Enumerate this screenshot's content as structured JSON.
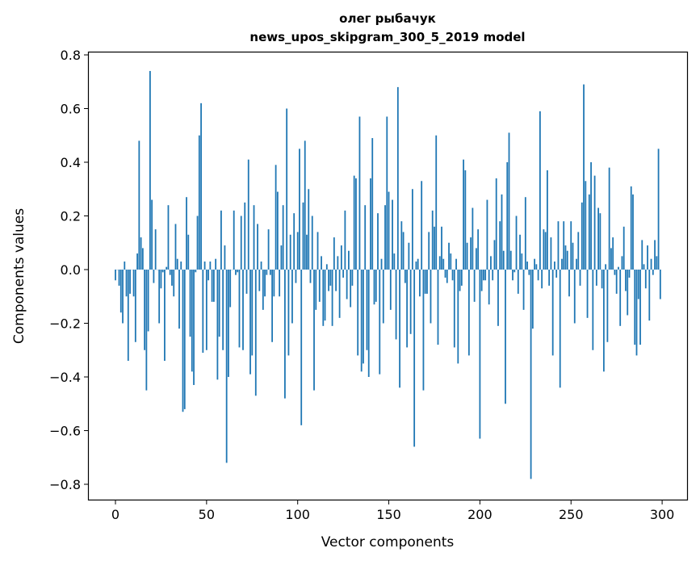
{
  "chart_data": {
    "type": "bar",
    "title": [
      "олег рыбачук",
      "news_upos_skipgram_300_5_2019 model"
    ],
    "xlabel": "Vector components",
    "ylabel": "Components values",
    "xlim": [
      -15,
      314
    ],
    "ylim": [
      -0.86,
      0.81
    ],
    "xticks": [
      0,
      50,
      100,
      150,
      200,
      250,
      300
    ],
    "xtick_labels": [
      "0",
      "50",
      "100",
      "150",
      "200",
      "250",
      "300"
    ],
    "yticks": [
      -0.8,
      -0.6,
      -0.4,
      -0.2,
      0.0,
      0.2,
      0.4,
      0.6,
      0.8
    ],
    "ytick_labels": [
      "−0.8",
      "−0.6",
      "−0.4",
      "−0.2",
      "0.0",
      "0.2",
      "0.4",
      "0.6",
      "0.8"
    ],
    "grid": false,
    "color": "#1f77b4",
    "values": [
      -0.04,
      0,
      -0.06,
      -0.16,
      -0.2,
      0.03,
      -0.1,
      -0.34,
      -0.09,
      0,
      -0.1,
      -0.27,
      0.06,
      0.48,
      0.12,
      0.08,
      -0.3,
      -0.45,
      -0.23,
      0.74,
      0.26,
      -0.05,
      0.15,
      0,
      -0.2,
      -0.07,
      -0.01,
      -0.34,
      0.01,
      0.24,
      -0.02,
      -0.06,
      -0.1,
      0.17,
      0.04,
      -0.22,
      0.03,
      -0.53,
      -0.52,
      0.27,
      0.13,
      -0.25,
      -0.38,
      -0.43,
      -0.01,
      0.2,
      0.5,
      0.62,
      -0.31,
      0.03,
      -0.3,
      -0.04,
      0.03,
      -0.12,
      -0.12,
      0.04,
      -0.41,
      -0.25,
      0.22,
      -0.3,
      0.09,
      -0.72,
      -0.4,
      -0.14,
      0,
      0.22,
      -0.02,
      -0.01,
      -0.29,
      0.2,
      -0.3,
      0.25,
      -0.09,
      0.41,
      -0.39,
      -0.32,
      0.24,
      -0.47,
      0.17,
      -0.08,
      0.03,
      -0.15,
      -0.1,
      -0.02,
      0.15,
      -0.02,
      -0.27,
      -0.1,
      0.39,
      0.29,
      -0.1,
      0.09,
      0.24,
      -0.48,
      0.6,
      -0.32,
      0.13,
      -0.2,
      0.21,
      -0.05,
      0.14,
      0.45,
      -0.58,
      0.25,
      0.48,
      0.13,
      0.3,
      -0.05,
      0.2,
      -0.45,
      -0.15,
      0.14,
      -0.12,
      0.05,
      -0.21,
      -0.19,
      0.02,
      -0.08,
      -0.06,
      -0.21,
      0.12,
      -0.08,
      0.05,
      -0.18,
      0.09,
      -0.03,
      0.22,
      -0.11,
      0.07,
      -0.14,
      -0.06,
      0.35,
      0.34,
      -0.32,
      0.57,
      -0.38,
      -0.35,
      0.24,
      -0.3,
      -0.4,
      0.34,
      0.49,
      -0.13,
      -0.12,
      0.21,
      -0.39,
      0.04,
      -0.2,
      0.24,
      0.57,
      0.29,
      -0.15,
      0.26,
      0.06,
      -0.26,
      0.68,
      -0.44,
      0.18,
      0.14,
      -0.05,
      -0.29,
      0.1,
      -0.24,
      0.3,
      -0.66,
      0.03,
      0.04,
      -0.1,
      0.33,
      -0.45,
      -0.09,
      -0.09,
      0.14,
      -0.2,
      0.22,
      0.16,
      0.5,
      -0.28,
      0.05,
      0.16,
      0.04,
      -0.03,
      -0.05,
      0.1,
      0.06,
      -0.04,
      -0.29,
      0.04,
      -0.35,
      -0.08,
      -0.06,
      0.41,
      0.37,
      0.1,
      -0.32,
      0.12,
      0.23,
      -0.12,
      0.08,
      0.15,
      -0.63,
      -0.08,
      -0.04,
      -0.04,
      0.26,
      -0.13,
      0.05,
      -0.04,
      0.11,
      0.34,
      -0.21,
      0.18,
      0.28,
      0.07,
      -0.5,
      0.4,
      0.51,
      0.07,
      -0.04,
      -0.01,
      0.2,
      -0.09,
      0.13,
      0.06,
      -0.15,
      0.27,
      0.03,
      -0.02,
      -0.78,
      -0.22,
      0.04,
      0.02,
      -0.04,
      0.59,
      -0.07,
      0.15,
      0.14,
      0.37,
      -0.06,
      0.12,
      -0.32,
      0.03,
      -0.03,
      0.18,
      -0.44,
      0.04,
      0.18,
      0.09,
      0.07,
      -0.1,
      0.18,
      0.1,
      -0.2,
      0.04,
      0.14,
      -0.06,
      0.25,
      0.69,
      0.33,
      -0.18,
      0.28,
      0.4,
      -0.3,
      0.35,
      -0.06,
      0.23,
      0.21,
      -0.07,
      -0.38,
      0.02,
      -0.27,
      0.38,
      0.08,
      0.12,
      -0.02,
      -0.09,
      0.01,
      -0.21,
      0.05,
      0.16,
      -0.08,
      -0.17,
      -0.03,
      0.31,
      0.28,
      -0.28,
      -0.32,
      -0.11,
      -0.28,
      0.11,
      0.02,
      -0.07,
      0.09,
      -0.19,
      0.04,
      -0.02,
      0.11,
      0.05,
      0.45,
      -0.11
    ]
  }
}
